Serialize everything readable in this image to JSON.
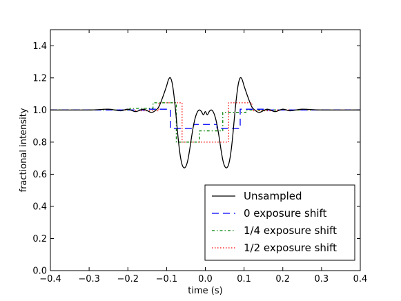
{
  "chart_data": {
    "type": "line",
    "title": "",
    "xlabel": "time (s)",
    "ylabel": "fractional intensity",
    "xlim": [
      -0.4,
      0.4
    ],
    "ylim": [
      0.0,
      1.5
    ],
    "xticks": [
      -0.4,
      -0.3,
      -0.2,
      -0.1,
      0.0,
      0.1,
      0.2,
      0.3,
      0.4
    ],
    "xtick_labels": [
      "−0.4",
      "−0.3",
      "−0.2",
      "−0.1",
      "0.0",
      "0.1",
      "0.2",
      "0.3",
      "0.4"
    ],
    "yticks": [
      0.0,
      0.2,
      0.4,
      0.6,
      0.8,
      1.0,
      1.2,
      1.4
    ],
    "ytick_labels": [
      "0.0",
      "0.2",
      "0.4",
      "0.6",
      "0.8",
      "1.0",
      "1.2",
      "1.4"
    ],
    "grid": false,
    "legend_position": "bottom-right",
    "series": [
      {
        "name": "Unsampled",
        "color": "#000000",
        "style": "solid",
        "x": [
          -0.4,
          -0.3,
          -0.25,
          -0.22,
          -0.2,
          -0.18,
          -0.16,
          -0.14,
          -0.13,
          -0.12,
          -0.11,
          -0.1,
          -0.095,
          -0.09,
          -0.085,
          -0.08,
          -0.075,
          -0.07,
          -0.065,
          -0.06,
          -0.055,
          -0.05,
          -0.045,
          -0.04,
          -0.035,
          -0.03,
          -0.025,
          -0.02,
          -0.015,
          -0.01,
          -0.005,
          0.0,
          0.005,
          0.01,
          0.015,
          0.02,
          0.025,
          0.03,
          0.035,
          0.04,
          0.045,
          0.05,
          0.055,
          0.06,
          0.065,
          0.07,
          0.075,
          0.08,
          0.085,
          0.09,
          0.095,
          0.1,
          0.11,
          0.12,
          0.13,
          0.14,
          0.16,
          0.18,
          0.2,
          0.22,
          0.25,
          0.3,
          0.4
        ],
        "y": [
          1.0,
          1.0,
          1.005,
          0.995,
          1.005,
          0.99,
          1.005,
          0.985,
          0.995,
          1.02,
          1.08,
          1.15,
          1.19,
          1.2,
          1.16,
          1.07,
          0.95,
          0.82,
          0.72,
          0.66,
          0.64,
          0.65,
          0.69,
          0.76,
          0.84,
          0.91,
          0.96,
          0.99,
          1.0,
          0.99,
          0.97,
          0.99,
          0.97,
          0.99,
          1.0,
          0.99,
          0.96,
          0.91,
          0.84,
          0.76,
          0.69,
          0.65,
          0.64,
          0.66,
          0.72,
          0.82,
          0.95,
          1.07,
          1.16,
          1.2,
          1.19,
          1.15,
          1.08,
          1.02,
          0.995,
          0.985,
          1.005,
          0.99,
          1.005,
          0.995,
          1.005,
          1.0,
          1.0
        ]
      },
      {
        "name": "0 exposure shift",
        "color": "#0000ff",
        "style": "dashed",
        "x": [
          -0.4,
          -0.15,
          -0.15,
          -0.09,
          -0.09,
          -0.03,
          -0.03,
          0.03,
          0.03,
          0.09,
          0.09,
          0.15,
          0.15,
          0.4
        ],
        "y": [
          1.0,
          1.0,
          1.005,
          1.005,
          0.885,
          0.885,
          0.91,
          0.91,
          0.885,
          0.885,
          1.005,
          1.005,
          1.0,
          1.0
        ]
      },
      {
        "name": "1/4 exposure shift",
        "color": "#008000",
        "style": "dashdot",
        "x": [
          -0.4,
          -0.195,
          -0.195,
          -0.135,
          -0.135,
          -0.075,
          -0.075,
          -0.015,
          -0.015,
          0.045,
          0.045,
          0.105,
          0.105,
          0.165,
          0.165,
          0.4
        ],
        "y": [
          1.0,
          1.0,
          1.01,
          1.01,
          1.045,
          1.045,
          0.8,
          0.8,
          0.87,
          0.87,
          0.985,
          0.985,
          1.0,
          1.0,
          1.0,
          1.0
        ]
      },
      {
        "name": "1/2 exposure shift",
        "color": "#ff0000",
        "style": "dotted",
        "x": [
          -0.4,
          -0.18,
          -0.18,
          -0.12,
          -0.12,
          -0.06,
          -0.06,
          0.0,
          0.0,
          0.06,
          0.06,
          0.12,
          0.12,
          0.18,
          0.18,
          0.4
        ],
        "y": [
          1.0,
          1.0,
          0.995,
          0.995,
          1.045,
          1.045,
          0.8,
          0.8,
          0.8,
          0.8,
          1.045,
          1.045,
          0.995,
          0.995,
          1.0,
          1.0
        ]
      }
    ]
  }
}
